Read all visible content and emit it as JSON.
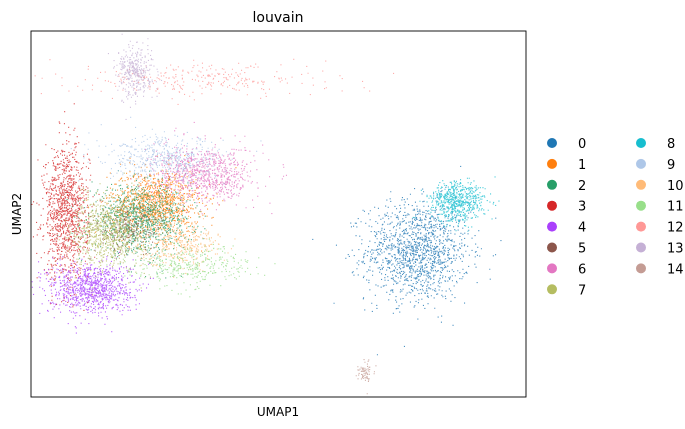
{
  "chart_data": {
    "type": "scatter",
    "title": "louvain",
    "xlabel": "UMAP1",
    "ylabel": "UMAP2",
    "x_ticks": false,
    "y_ticks": false,
    "xlim": [
      -10,
      10
    ],
    "ylim": [
      -10,
      10
    ],
    "legend": {
      "placement": "right",
      "columns": 2,
      "entries": [
        {
          "label": "0",
          "color": "#1f77b4"
        },
        {
          "label": "1",
          "color": "#ff7f0e"
        },
        {
          "label": "2",
          "color": "#279e68"
        },
        {
          "label": "3",
          "color": "#d62728"
        },
        {
          "label": "4",
          "color": "#aa40fc"
        },
        {
          "label": "5",
          "color": "#8c564b"
        },
        {
          "label": "6",
          "color": "#e377c2"
        },
        {
          "label": "7",
          "color": "#b5bd61"
        },
        {
          "label": "8",
          "color": "#17becf"
        },
        {
          "label": "9",
          "color": "#aec7e8"
        },
        {
          "label": "10",
          "color": "#ffbb78"
        },
        {
          "label": "11",
          "color": "#98df8a"
        },
        {
          "label": "12",
          "color": "#ff9896"
        },
        {
          "label": "13",
          "color": "#c5b0d5"
        },
        {
          "label": "14",
          "color": "#c49c94"
        }
      ]
    },
    "clusters": [
      {
        "label": "0",
        "center": [
          5.6,
          -2.0
        ],
        "spread": [
          1.05,
          1.35
        ],
        "density": 1.0
      },
      {
        "label": "1",
        "center": [
          -5.0,
          0.6
        ],
        "spread": [
          0.9,
          0.9
        ],
        "density": 0.8
      },
      {
        "label": "2",
        "center": [
          -5.6,
          -0.3
        ],
        "spread": [
          1.0,
          0.9
        ],
        "density": 0.7
      },
      {
        "label": "3",
        "center": [
          -8.6,
          0.1
        ],
        "spread": [
          0.45,
          1.8
        ],
        "density": 0.8
      },
      {
        "label": "4",
        "center": [
          -7.6,
          -4.0
        ],
        "spread": [
          0.85,
          0.7
        ],
        "density": 0.7
      },
      {
        "label": "5",
        "center": [
          -6.2,
          -0.8
        ],
        "spread": [
          0.7,
          0.6
        ],
        "density": 0.15
      },
      {
        "label": "6",
        "center": [
          -3.0,
          2.2
        ],
        "spread": [
          1.0,
          0.75
        ],
        "density": 0.6
      },
      {
        "label": "7",
        "center": [
          -6.9,
          -0.9
        ],
        "spread": [
          0.7,
          1.0
        ],
        "density": 0.55
      },
      {
        "label": "8",
        "center": [
          7.2,
          0.7
        ],
        "spread": [
          0.55,
          0.55
        ],
        "density": 0.45
      },
      {
        "label": "9",
        "center": [
          -4.6,
          3.0
        ],
        "spread": [
          1.2,
          0.6
        ],
        "density": 0.35
      },
      {
        "label": "10",
        "center": [
          -4.0,
          -1.6
        ],
        "spread": [
          0.8,
          0.6
        ],
        "density": 0.25
      },
      {
        "label": "11",
        "center": [
          -3.6,
          -2.8
        ],
        "spread": [
          1.2,
          0.55
        ],
        "density": 0.25
      },
      {
        "label": "12",
        "center": [
          -3.0,
          7.4
        ],
        "spread": [
          2.6,
          0.45
        ],
        "density": 0.2
      },
      {
        "label": "13",
        "center": [
          -5.8,
          7.8
        ],
        "spread": [
          0.35,
          0.7
        ],
        "density": 0.25
      },
      {
        "label": "14",
        "center": [
          3.5,
          -8.6
        ],
        "spread": [
          0.15,
          0.3
        ],
        "density": 0.05
      }
    ]
  }
}
